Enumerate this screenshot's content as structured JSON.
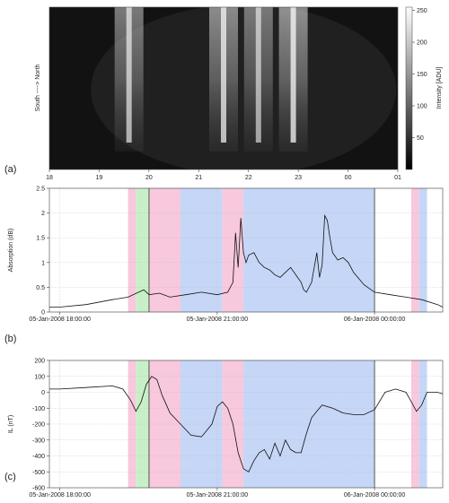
{
  "panel_a": {
    "label": "(a)",
    "ylabel": "South ----> North",
    "xticks": [
      "18",
      "19",
      "20",
      "21",
      "22",
      "23",
      "00",
      "01"
    ],
    "colorbar": {
      "label": "Intensity [ADU]",
      "ticks": [
        50,
        100,
        150,
        200,
        250
      ]
    }
  },
  "panel_b": {
    "label": "(b)"
  },
  "panel_c": {
    "label": "(c)"
  },
  "chart_data": [
    {
      "type": "heatmap",
      "ylabel": "South ----> North",
      "xlim_hours": [
        18,
        25
      ],
      "x_tick_labels": [
        "18",
        "19",
        "20",
        "21",
        "22",
        "23",
        "00",
        "01"
      ],
      "colorbar_label": "Intensity [ADU]",
      "colorbar_range": [
        0,
        255
      ],
      "colormap": "gray",
      "bright_features": [
        {
          "center_hour": 19.6,
          "peak": 200
        },
        {
          "center_hour": 21.5,
          "peak": 220
        },
        {
          "center_hour": 22.2,
          "peak": 180
        },
        {
          "center_hour": 22.9,
          "peak": 230
        }
      ]
    },
    {
      "type": "line",
      "ylabel": "Absorption (dB)",
      "ylim": [
        0,
        2.5
      ],
      "yticks": [
        0,
        0.5,
        1,
        1.5,
        2,
        2.5
      ],
      "xlim_hours": [
        17.8,
        25.3
      ],
      "x_tick_labels": [
        "05-Jan-2008 18:00:00",
        "05-Jan-2008 21:00:00",
        "06-Jan-2008 00:00:00"
      ],
      "x_tick_hours": [
        18,
        21,
        24
      ],
      "vertical_lines_hours": [
        19.7,
        24.0
      ],
      "shaded_regions": [
        {
          "x0": 19.3,
          "x1": 19.45,
          "color": "#f8c8dc"
        },
        {
          "x0": 19.45,
          "x1": 19.7,
          "color": "#c8f0c8"
        },
        {
          "x0": 19.7,
          "x1": 20.3,
          "color": "#f8c8dc"
        },
        {
          "x0": 20.3,
          "x1": 21.1,
          "color": "#c6d6f6"
        },
        {
          "x0": 21.1,
          "x1": 21.5,
          "color": "#f8c8dc"
        },
        {
          "x0": 21.5,
          "x1": 24.0,
          "color": "#c6d6f6"
        },
        {
          "x0": 24.7,
          "x1": 24.85,
          "color": "#f8c8dc"
        },
        {
          "x0": 24.85,
          "x1": 25.0,
          "color": "#c6d6f6"
        }
      ],
      "series": [
        {
          "x": [
            17.8,
            18.0,
            18.5,
            19.0,
            19.3,
            19.5,
            19.6,
            19.7,
            19.9,
            20.1,
            20.4,
            20.7,
            21.0,
            21.2,
            21.3,
            21.35,
            21.4,
            21.45,
            21.5,
            21.55,
            21.6,
            21.7,
            21.8,
            21.9,
            22.0,
            22.1,
            22.2,
            22.3,
            22.4,
            22.5,
            22.6,
            22.65,
            22.7,
            22.8,
            22.9,
            22.95,
            23.0,
            23.05,
            23.1,
            23.15,
            23.2,
            23.3,
            23.4,
            23.5,
            23.6,
            23.8,
            24.0,
            24.3,
            24.6,
            24.9,
            25.2,
            25.3
          ],
          "values": [
            0.1,
            0.1,
            0.15,
            0.25,
            0.3,
            0.4,
            0.45,
            0.35,
            0.38,
            0.3,
            0.35,
            0.4,
            0.35,
            0.4,
            0.6,
            1.6,
            0.9,
            1.9,
            1.2,
            1.0,
            1.15,
            1.2,
            1.0,
            0.9,
            0.85,
            0.75,
            0.7,
            0.8,
            0.9,
            0.75,
            0.6,
            0.45,
            0.4,
            0.6,
            1.2,
            0.7,
            0.95,
            1.95,
            1.85,
            1.5,
            1.2,
            1.05,
            1.1,
            1.0,
            0.8,
            0.55,
            0.4,
            0.35,
            0.3,
            0.25,
            0.15,
            0.1
          ]
        }
      ]
    },
    {
      "type": "line",
      "ylabel": "IL (nT)",
      "ylim": [
        -600,
        200
      ],
      "yticks": [
        -600,
        -500,
        -400,
        -300,
        -200,
        -100,
        0,
        100,
        200
      ],
      "xlim_hours": [
        17.8,
        25.3
      ],
      "x_tick_labels": [
        "05-Jan-2008 18:00:00",
        "05-Jan-2008 21:00:00",
        "06-Jan-2008 00:00:00"
      ],
      "x_tick_hours": [
        18,
        21,
        24
      ],
      "vertical_lines_hours": [
        19.7,
        24.0
      ],
      "shaded_regions": [
        {
          "x0": 19.3,
          "x1": 19.45,
          "color": "#f8c8dc"
        },
        {
          "x0": 19.45,
          "x1": 19.7,
          "color": "#c8f0c8"
        },
        {
          "x0": 19.7,
          "x1": 20.3,
          "color": "#f8c8dc"
        },
        {
          "x0": 20.3,
          "x1": 21.1,
          "color": "#c6d6f6"
        },
        {
          "x0": 21.1,
          "x1": 21.5,
          "color": "#f8c8dc"
        },
        {
          "x0": 21.5,
          "x1": 24.0,
          "color": "#c6d6f6"
        },
        {
          "x0": 24.7,
          "x1": 24.85,
          "color": "#f8c8dc"
        },
        {
          "x0": 24.85,
          "x1": 25.0,
          "color": "#c6d6f6"
        }
      ],
      "series": [
        {
          "x": [
            17.8,
            18.0,
            18.5,
            19.0,
            19.2,
            19.35,
            19.45,
            19.55,
            19.65,
            19.75,
            19.85,
            19.95,
            20.1,
            20.3,
            20.5,
            20.7,
            20.9,
            21.0,
            21.1,
            21.2,
            21.3,
            21.4,
            21.5,
            21.6,
            21.7,
            21.8,
            21.9,
            22.0,
            22.1,
            22.2,
            22.3,
            22.4,
            22.5,
            22.6,
            22.7,
            22.8,
            22.9,
            23.0,
            23.2,
            23.4,
            23.6,
            23.8,
            24.0,
            24.2,
            24.4,
            24.6,
            24.7,
            24.8,
            24.9,
            25.0,
            25.2,
            25.3
          ],
          "values": [
            20,
            20,
            30,
            40,
            20,
            -50,
            -120,
            -60,
            50,
            100,
            80,
            -20,
            -130,
            -200,
            -270,
            -280,
            -200,
            -90,
            -60,
            -100,
            -200,
            -380,
            -480,
            -500,
            -430,
            -380,
            -360,
            -420,
            -320,
            -400,
            -300,
            -360,
            -380,
            -380,
            -260,
            -160,
            -120,
            -80,
            -100,
            -130,
            -140,
            -140,
            -110,
            0,
            20,
            0,
            -60,
            -120,
            -80,
            0,
            0,
            -10
          ]
        }
      ]
    }
  ]
}
